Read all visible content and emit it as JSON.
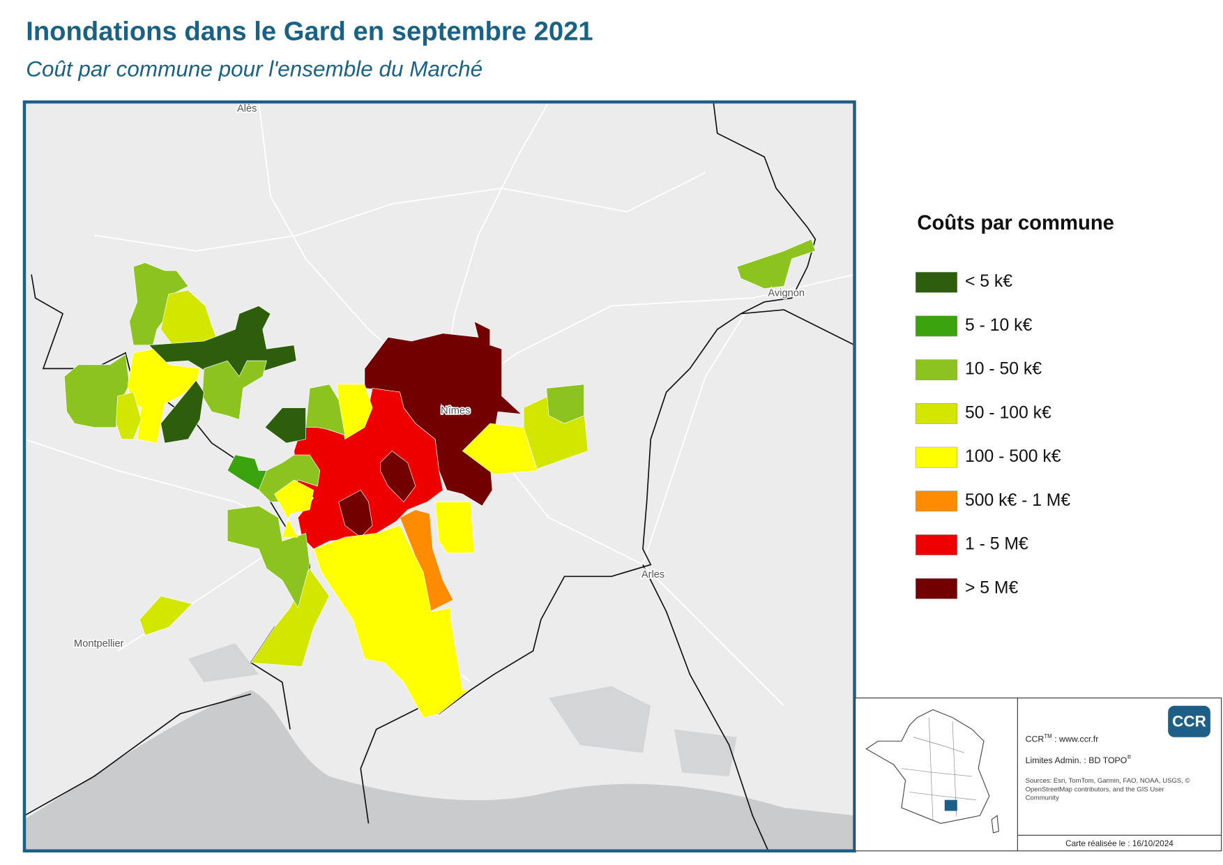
{
  "header": {
    "title": "Inondations dans le Gard en septembre 2021",
    "subtitle": "Coût par commune pour l'ensemble du Marché"
  },
  "map": {
    "places": [
      "Alès",
      "Avignon",
      "Nîmes",
      "Arles",
      "Montpellier"
    ]
  },
  "legend": {
    "title": "Coûts par commune",
    "items": [
      {
        "label": "< 5 k€",
        "color": "#2d5e0b"
      },
      {
        "label": "5 - 10 k€",
        "color": "#3aa30b"
      },
      {
        "label": "10 - 50 k€",
        "color": "#8cc31f"
      },
      {
        "label": "50 - 100 k€",
        "color": "#d3e600"
      },
      {
        "label": "100 - 500 k€",
        "color": "#ffff00"
      },
      {
        "label": "500 k€ - 1 M€",
        "color": "#ff8c00"
      },
      {
        "label": "1 - 5 M€",
        "color": "#ee0000"
      },
      {
        "label": "> 5 M€",
        "color": "#730000"
      }
    ]
  },
  "credits": {
    "logo": "CCR",
    "producer": "CCR",
    "producer_mark": "TM",
    "producer_site": " : www.ccr.fr",
    "limits": "Limites Admin. : BD TOPO",
    "limits_mark": "®",
    "sources": [
      "Sources: Esri, TomTom, Garmin, FAO, NOAA, USGS, ©",
      "OpenStreetMap contributors, and the GIS User",
      "Community"
    ],
    "date": "Carte réalisée le : 16/10/2024"
  }
}
